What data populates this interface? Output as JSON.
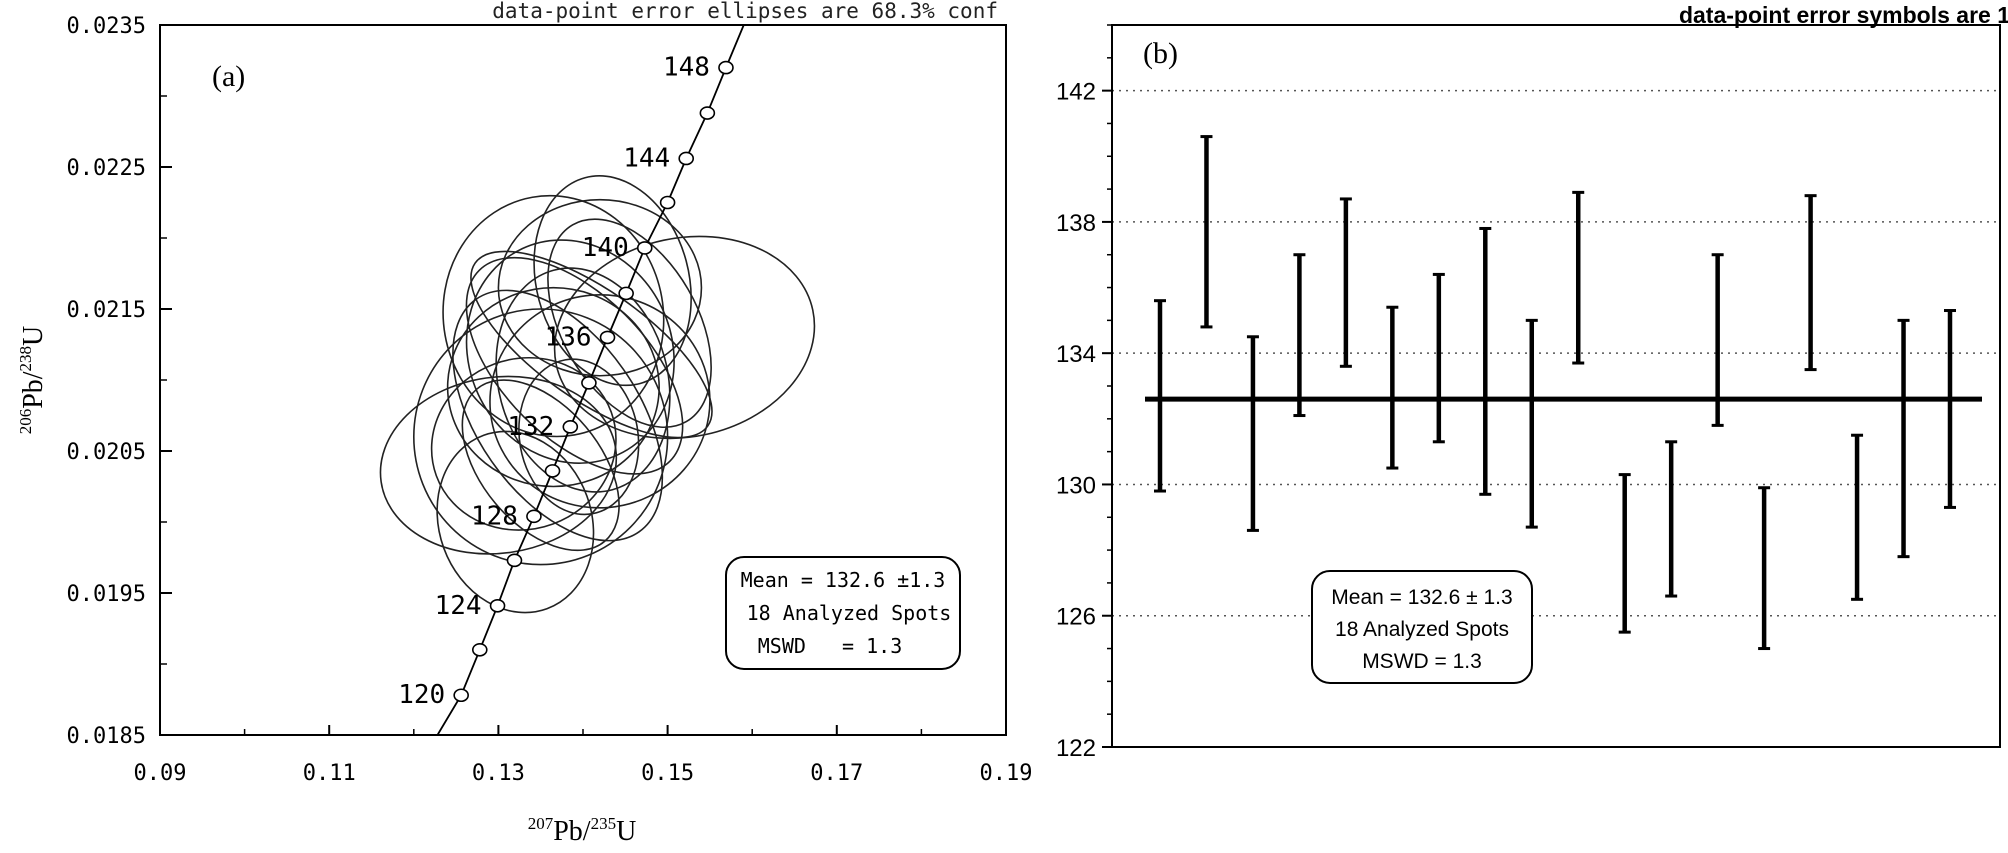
{
  "chart_data": [
    {
      "type": "scatter",
      "subtype": "concordia-error-ellipses",
      "panel_label": "(a)",
      "note": "data-point error ellipses are 68.3% conf",
      "xlabel": {
        "sup1": "207",
        "base1": "Pb/",
        "sup2": "235",
        "base2": "U"
      },
      "ylabel": {
        "sup1": "206",
        "base1": "Pb/",
        "sup2": "238",
        "base2": "U"
      },
      "xlim": [
        0.09,
        0.19
      ],
      "ylim": [
        0.0185,
        0.0235
      ],
      "x_ticks": [
        0.09,
        0.11,
        0.13,
        0.15,
        0.17,
        0.19
      ],
      "x_tick_labels": [
        "0.09",
        "0.11",
        "0.13",
        "0.15",
        "0.17",
        "0.19"
      ],
      "y_ticks": [
        0.0185,
        0.0195,
        0.0205,
        0.0215,
        0.0225,
        0.0235
      ],
      "y_tick_labels": [
        "0.0185",
        "0.0195",
        "0.0205",
        "0.0215",
        "0.0225",
        "0.0235"
      ],
      "concordia": {
        "ages": [
          118,
          120,
          122,
          124,
          126,
          128,
          130,
          132,
          134,
          136,
          138,
          140,
          142,
          144,
          146,
          148,
          150
        ],
        "x": [
          0.1228,
          0.1256,
          0.1278,
          0.1299,
          0.1319,
          0.1342,
          0.1364,
          0.1385,
          0.1407,
          0.1429,
          0.1451,
          0.1473,
          0.15,
          0.1522,
          0.1547,
          0.1569,
          0.159
        ],
        "y": [
          0.0185,
          0.01878,
          0.0191,
          0.01941,
          0.01973,
          0.02004,
          0.02036,
          0.02067,
          0.02098,
          0.0213,
          0.02161,
          0.02193,
          0.02225,
          0.02256,
          0.02288,
          0.0232,
          0.0235
        ],
        "marker_ages": [
          120,
          122,
          124,
          126,
          128,
          130,
          132,
          134,
          136,
          138,
          140,
          142,
          144,
          146,
          148
        ],
        "age_labels": [
          {
            "age": 120,
            "text": "120"
          },
          {
            "age": 124,
            "text": "124"
          },
          {
            "age": 128,
            "text": "128"
          },
          {
            "age": 132,
            "text": "132"
          },
          {
            "age": 136,
            "text": "136"
          },
          {
            "age": 140,
            "text": "140"
          },
          {
            "age": 144,
            "text": "144"
          },
          {
            "age": 148,
            "text": "148"
          }
        ]
      },
      "ellipses": [
        {
          "cx": 0.1365,
          "cy": 0.02145,
          "rx": 0.013,
          "ry": 0.00085,
          "angle": 10
        },
        {
          "cx": 0.142,
          "cy": 0.02165,
          "rx": 0.012,
          "ry": 0.00062,
          "angle": 0
        },
        {
          "cx": 0.152,
          "cy": 0.0213,
          "rx": 0.0155,
          "ry": 0.0007,
          "angle": 12
        },
        {
          "cx": 0.13,
          "cy": 0.0204,
          "rx": 0.014,
          "ry": 0.00062,
          "angle": 8
        },
        {
          "cx": 0.135,
          "cy": 0.0206,
          "rx": 0.015,
          "ry": 0.0009,
          "angle": 0
        },
        {
          "cx": 0.14,
          "cy": 0.021,
          "rx": 0.01,
          "ry": 0.0008,
          "angle": 15
        },
        {
          "cx": 0.137,
          "cy": 0.02075,
          "rx": 0.0095,
          "ry": 0.001,
          "angle": 35
        },
        {
          "cx": 0.139,
          "cy": 0.0211,
          "rx": 0.0085,
          "ry": 0.00095,
          "angle": 45
        },
        {
          "cx": 0.135,
          "cy": 0.0204,
          "rx": 0.007,
          "ry": 0.0007,
          "angle": 40
        },
        {
          "cx": 0.142,
          "cy": 0.02085,
          "rx": 0.013,
          "ry": 0.00075,
          "angle": 5
        },
        {
          "cx": 0.132,
          "cy": 0.02,
          "rx": 0.009,
          "ry": 0.00065,
          "angle": 20
        },
        {
          "cx": 0.1385,
          "cy": 0.0212,
          "rx": 0.012,
          "ry": 0.0008,
          "angle": 25
        },
        {
          "cx": 0.1365,
          "cy": 0.02095,
          "rx": 0.0125,
          "ry": 0.0007,
          "angle": 0
        },
        {
          "cx": 0.1455,
          "cy": 0.0214,
          "rx": 0.008,
          "ry": 0.0008,
          "angle": 30
        },
        {
          "cx": 0.141,
          "cy": 0.02125,
          "rx": 0.0065,
          "ry": 0.001,
          "angle": 55
        },
        {
          "cx": 0.133,
          "cy": 0.02055,
          "rx": 0.011,
          "ry": 0.0006,
          "angle": 20
        },
        {
          "cx": 0.1395,
          "cy": 0.0206,
          "rx": 0.007,
          "ry": 0.00055,
          "angle": 10
        },
        {
          "cx": 0.1435,
          "cy": 0.0217,
          "rx": 0.009,
          "ry": 0.00075,
          "angle": 15
        }
      ],
      "stats_box": {
        "mean": "Mean = 132.6 ±1.3",
        "spots": "18 Analyzed Spots",
        "mswd": "MSWD   = 1.3"
      }
    },
    {
      "type": "error-bar",
      "panel_label": "(b)",
      "note": "data-point error symbols are 1",
      "ylim": [
        122,
        144
      ],
      "y_ticks": [
        122,
        126,
        130,
        134,
        138,
        142
      ],
      "y_tick_labels": [
        "122",
        "126",
        "130",
        "134",
        "138",
        "142"
      ],
      "grid_lines_at": [
        126,
        130,
        134,
        138,
        142
      ],
      "mean_line": 132.6,
      "bars": [
        {
          "low": 129.8,
          "high": 135.6
        },
        {
          "low": 134.8,
          "high": 140.6
        },
        {
          "low": 128.6,
          "high": 134.5
        },
        {
          "low": 132.1,
          "high": 137.0
        },
        {
          "low": 133.6,
          "high": 138.7
        },
        {
          "low": 130.5,
          "high": 135.4
        },
        {
          "low": 131.3,
          "high": 136.4
        },
        {
          "low": 129.7,
          "high": 137.8
        },
        {
          "low": 128.7,
          "high": 135.0
        },
        {
          "low": 133.7,
          "high": 138.9
        },
        {
          "low": 125.5,
          "high": 130.3
        },
        {
          "low": 126.6,
          "high": 131.3
        },
        {
          "low": 131.8,
          "high": 137.0
        },
        {
          "low": 125.0,
          "high": 129.9
        },
        {
          "low": 133.5,
          "high": 138.8
        },
        {
          "low": 126.5,
          "high": 131.5
        },
        {
          "low": 127.8,
          "high": 135.0
        },
        {
          "low": 129.3,
          "high": 135.3
        }
      ],
      "stats_box": {
        "mean": "Mean = 132.6 ± 1.3",
        "spots": "18 Analyzed Spots",
        "mswd": "MSWD = 1.3"
      }
    }
  ]
}
